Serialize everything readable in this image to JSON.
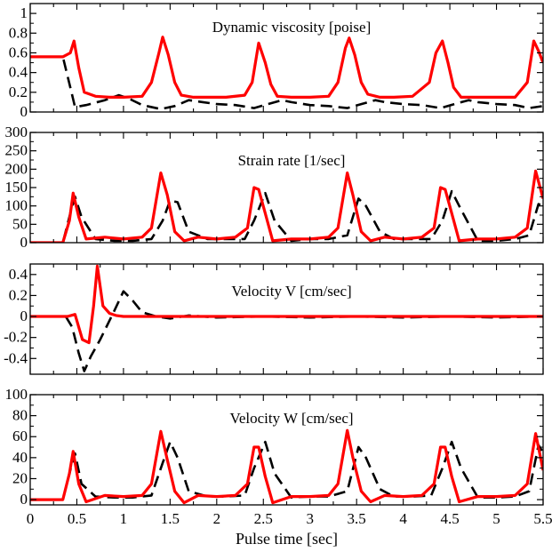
{
  "chart_data": [
    {
      "type": "line",
      "title": "Dynamic viscosity [poise]",
      "xlim": [
        0,
        5.5
      ],
      "ylim": [
        0,
        1.1
      ],
      "yticks": [
        0,
        0.2,
        0.4,
        0.6,
        0.8,
        1
      ],
      "ytick_labels": [
        "0",
        "0.2",
        "0.4",
        "0.6",
        "0.8",
        "1"
      ],
      "series": [
        {
          "name": "solid-red",
          "color": "#ff0000",
          "style": "solid",
          "x": [
            0,
            0.35,
            0.43,
            0.47,
            0.52,
            0.58,
            0.7,
            0.85,
            1.0,
            1.2,
            1.3,
            1.38,
            1.42,
            1.48,
            1.55,
            1.62,
            1.75,
            1.9,
            2.1,
            2.3,
            2.38,
            2.45,
            2.52,
            2.58,
            2.65,
            2.8,
            3.0,
            3.2,
            3.3,
            3.38,
            3.42,
            3.48,
            3.55,
            3.62,
            3.75,
            3.9,
            4.1,
            4.28,
            4.35,
            4.42,
            4.48,
            4.54,
            4.62,
            4.8,
            5.0,
            5.2,
            5.33,
            5.4,
            5.45,
            5.5
          ],
          "y": [
            0.56,
            0.56,
            0.6,
            0.72,
            0.45,
            0.2,
            0.16,
            0.15,
            0.15,
            0.16,
            0.3,
            0.6,
            0.76,
            0.58,
            0.3,
            0.17,
            0.15,
            0.15,
            0.15,
            0.17,
            0.3,
            0.7,
            0.5,
            0.28,
            0.16,
            0.15,
            0.15,
            0.16,
            0.3,
            0.65,
            0.75,
            0.58,
            0.3,
            0.18,
            0.15,
            0.15,
            0.16,
            0.3,
            0.6,
            0.72,
            0.5,
            0.25,
            0.15,
            0.15,
            0.15,
            0.15,
            0.3,
            0.72,
            0.62,
            0.5
          ]
        },
        {
          "name": "dashed-black",
          "color": "#000000",
          "style": "dashed",
          "x": [
            0,
            0.35,
            0.43,
            0.48,
            0.6,
            0.8,
            0.95,
            1.05,
            1.2,
            1.4,
            1.55,
            1.7,
            1.85,
            2.0,
            2.2,
            2.4,
            2.55,
            2.7,
            2.8,
            3.0,
            3.2,
            3.4,
            3.55,
            3.7,
            3.8,
            4.0,
            4.2,
            4.4,
            4.55,
            4.7,
            4.8,
            5.0,
            5.2,
            5.35,
            5.5
          ],
          "y": [
            0.56,
            0.56,
            0.25,
            0.05,
            0.07,
            0.12,
            0.17,
            0.14,
            0.07,
            0.03,
            0.06,
            0.12,
            0.1,
            0.08,
            0.07,
            0.04,
            0.08,
            0.12,
            0.1,
            0.07,
            0.06,
            0.04,
            0.08,
            0.12,
            0.1,
            0.08,
            0.07,
            0.04,
            0.08,
            0.12,
            0.1,
            0.08,
            0.07,
            0.04,
            0.06
          ]
        }
      ]
    },
    {
      "type": "line",
      "title": "Strain rate [1/sec]",
      "xlim": [
        0,
        5.5
      ],
      "ylim": [
        0,
        300
      ],
      "yticks": [
        0,
        50,
        100,
        150,
        200,
        250,
        300
      ],
      "ytick_labels": [
        "0",
        "50",
        "100",
        "150",
        "200",
        "250",
        "300"
      ],
      "series": [
        {
          "name": "solid-red",
          "color": "#ff0000",
          "style": "solid",
          "x": [
            0,
            0.35,
            0.42,
            0.46,
            0.52,
            0.6,
            0.8,
            1.0,
            1.2,
            1.3,
            1.4,
            1.47,
            1.55,
            1.65,
            1.8,
            2.0,
            2.2,
            2.33,
            2.4,
            2.45,
            2.52,
            2.6,
            2.8,
            3.0,
            3.2,
            3.3,
            3.4,
            3.46,
            3.55,
            3.65,
            3.8,
            4.0,
            4.2,
            4.33,
            4.4,
            4.45,
            4.52,
            4.6,
            4.8,
            5.0,
            5.2,
            5.33,
            5.42,
            5.5
          ],
          "y": [
            0,
            0,
            60,
            135,
            70,
            10,
            15,
            10,
            15,
            40,
            190,
            130,
            30,
            5,
            15,
            10,
            15,
            40,
            150,
            145,
            80,
            5,
            10,
            10,
            15,
            40,
            190,
            130,
            30,
            5,
            15,
            10,
            15,
            40,
            150,
            145,
            80,
            5,
            10,
            10,
            15,
            40,
            195,
            120
          ]
        },
        {
          "name": "dashed-black",
          "color": "#000000",
          "style": "dashed",
          "x": [
            0,
            0.35,
            0.43,
            0.48,
            0.55,
            0.7,
            0.9,
            1.1,
            1.3,
            1.42,
            1.5,
            1.58,
            1.7,
            1.9,
            2.1,
            2.3,
            2.4,
            2.52,
            2.62,
            2.8,
            3.0,
            3.2,
            3.4,
            3.52,
            3.6,
            3.75,
            3.9,
            4.1,
            4.3,
            4.42,
            4.52,
            4.62,
            4.8,
            5.0,
            5.2,
            5.35,
            5.45,
            5.5
          ],
          "y": [
            0,
            0,
            80,
            125,
            70,
            10,
            5,
            5,
            10,
            60,
            115,
            110,
            30,
            10,
            10,
            10,
            60,
            135,
            60,
            5,
            10,
            10,
            20,
            120,
            100,
            30,
            10,
            10,
            10,
            60,
            140,
            90,
            5,
            5,
            10,
            20,
            105,
            100
          ]
        }
      ]
    },
    {
      "type": "line",
      "title": "Velocity V [cm/sec]",
      "xlim": [
        0,
        5.5
      ],
      "ylim": [
        -0.55,
        0.5
      ],
      "yticks": [
        -0.4,
        -0.2,
        0,
        0.2,
        0.4
      ],
      "ytick_labels": [
        "-0.4",
        "-0.2",
        "0",
        "0.2",
        "0.4"
      ],
      "series": [
        {
          "name": "solid-red",
          "color": "#ff0000",
          "style": "solid",
          "x": [
            0,
            0.4,
            0.48,
            0.56,
            0.63,
            0.68,
            0.72,
            0.78,
            0.85,
            0.92,
            1.0,
            1.5,
            2.0,
            3.0,
            4.0,
            5.0,
            5.5
          ],
          "y": [
            0,
            0,
            0.02,
            -0.22,
            -0.25,
            0.1,
            0.48,
            0.1,
            0.03,
            0.01,
            0,
            0,
            0,
            0,
            0,
            0,
            0
          ]
        },
        {
          "name": "dashed-black",
          "color": "#000000",
          "style": "dashed",
          "x": [
            0,
            0.38,
            0.45,
            0.52,
            0.58,
            0.65,
            0.75,
            0.9,
            1.0,
            1.1,
            1.2,
            1.35,
            1.5,
            1.7,
            2.0,
            2.5,
            3.0,
            3.5,
            4.0,
            4.5,
            5.0,
            5.5
          ],
          "y": [
            0,
            0,
            -0.1,
            -0.35,
            -0.52,
            -0.38,
            -0.22,
            0.05,
            0.24,
            0.15,
            0.04,
            0,
            -0.02,
            0.01,
            -0.01,
            0,
            -0.01,
            0,
            -0.01,
            0,
            -0.01,
            0
          ]
        }
      ]
    },
    {
      "type": "line",
      "title": "Velocity W [cm/sec]",
      "xlim": [
        0,
        5.5
      ],
      "ylim": [
        -5,
        100
      ],
      "yticks": [
        0,
        20,
        40,
        60,
        80,
        100
      ],
      "ytick_labels": [
        "0",
        "20",
        "40",
        "60",
        "80",
        "100"
      ],
      "xticks": [
        0,
        0.5,
        1,
        1.5,
        2,
        2.5,
        3,
        3.5,
        4,
        4.5,
        5,
        5.5
      ],
      "xtick_labels": [
        "0",
        "0.5",
        "1",
        "1.5",
        "2",
        "2.5",
        "3",
        "3.5",
        "4",
        "4.5",
        "5",
        "5.5"
      ],
      "xlabel": "Pulse time [sec]",
      "series": [
        {
          "name": "solid-red",
          "color": "#ff0000",
          "style": "solid",
          "x": [
            0,
            0.35,
            0.42,
            0.46,
            0.52,
            0.6,
            0.8,
            1.0,
            1.2,
            1.3,
            1.4,
            1.47,
            1.55,
            1.65,
            1.8,
            2.0,
            2.2,
            2.33,
            2.4,
            2.45,
            2.52,
            2.6,
            2.8,
            3.0,
            3.2,
            3.3,
            3.4,
            3.46,
            3.55,
            3.65,
            3.8,
            4.0,
            4.2,
            4.33,
            4.4,
            4.45,
            4.52,
            4.6,
            4.8,
            5.0,
            5.2,
            5.33,
            5.42,
            5.5
          ],
          "y": [
            0,
            0,
            25,
            46,
            15,
            -2,
            4,
            3,
            4,
            15,
            65,
            38,
            8,
            -3,
            4,
            3,
            4,
            15,
            50,
            50,
            22,
            -3,
            3,
            3,
            4,
            15,
            66,
            40,
            8,
            -2,
            4,
            3,
            4,
            15,
            50,
            50,
            22,
            -2,
            3,
            3,
            4,
            15,
            63,
            28
          ]
        },
        {
          "name": "dashed-black",
          "color": "#000000",
          "style": "dashed",
          "x": [
            0,
            0.35,
            0.43,
            0.48,
            0.55,
            0.7,
            0.9,
            1.1,
            1.3,
            1.42,
            1.5,
            1.58,
            1.7,
            1.9,
            2.1,
            2.3,
            2.4,
            2.52,
            2.62,
            2.8,
            3.0,
            3.2,
            3.4,
            3.52,
            3.6,
            3.75,
            3.9,
            4.1,
            4.3,
            4.42,
            4.52,
            4.62,
            4.8,
            5.0,
            5.2,
            5.35,
            5.45,
            5.5
          ],
          "y": [
            0,
            0,
            28,
            44,
            15,
            3,
            2,
            2,
            4,
            35,
            55,
            40,
            8,
            3,
            3,
            4,
            30,
            55,
            25,
            2,
            3,
            3,
            8,
            50,
            40,
            10,
            3,
            3,
            4,
            30,
            55,
            30,
            2,
            2,
            3,
            8,
            52,
            45
          ]
        }
      ]
    }
  ]
}
